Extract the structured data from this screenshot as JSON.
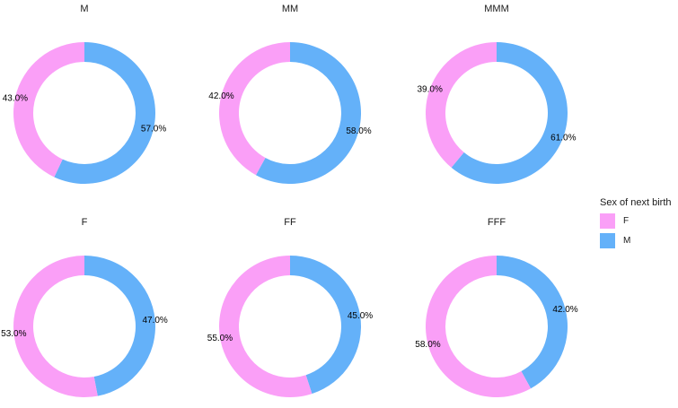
{
  "chart_data": [
    {
      "type": "pie",
      "title": "M",
      "categories": [
        "F",
        "M"
      ],
      "values": [
        43.0,
        57.0
      ],
      "labels": [
        "43.0%",
        "57.0%"
      ]
    },
    {
      "type": "pie",
      "title": "MM",
      "categories": [
        "F",
        "M"
      ],
      "values": [
        42.0,
        58.0
      ],
      "labels": [
        "42.0%",
        "58.0%"
      ]
    },
    {
      "type": "pie",
      "title": "MMM",
      "categories": [
        "F",
        "M"
      ],
      "values": [
        39.0,
        61.0
      ],
      "labels": [
        "39.0%",
        "61.0%"
      ]
    },
    {
      "type": "pie",
      "title": "F",
      "categories": [
        "F",
        "M"
      ],
      "values": [
        53.0,
        47.0
      ],
      "labels": [
        "53.0%",
        "47.0%"
      ]
    },
    {
      "type": "pie",
      "title": "FF",
      "categories": [
        "F",
        "M"
      ],
      "values": [
        55.0,
        45.0
      ],
      "labels": [
        "55.0%",
        "45.0%"
      ]
    },
    {
      "type": "pie",
      "title": "FFF",
      "categories": [
        "F",
        "M"
      ],
      "values": [
        58.0,
        42.0
      ],
      "labels": [
        "58.0%",
        "42.0%"
      ]
    }
  ],
  "legend": {
    "title": "Sex of next birth",
    "items": [
      {
        "label": "F",
        "color": "#FA9FF7"
      },
      {
        "label": "M",
        "color": "#64B1F9"
      }
    ]
  }
}
